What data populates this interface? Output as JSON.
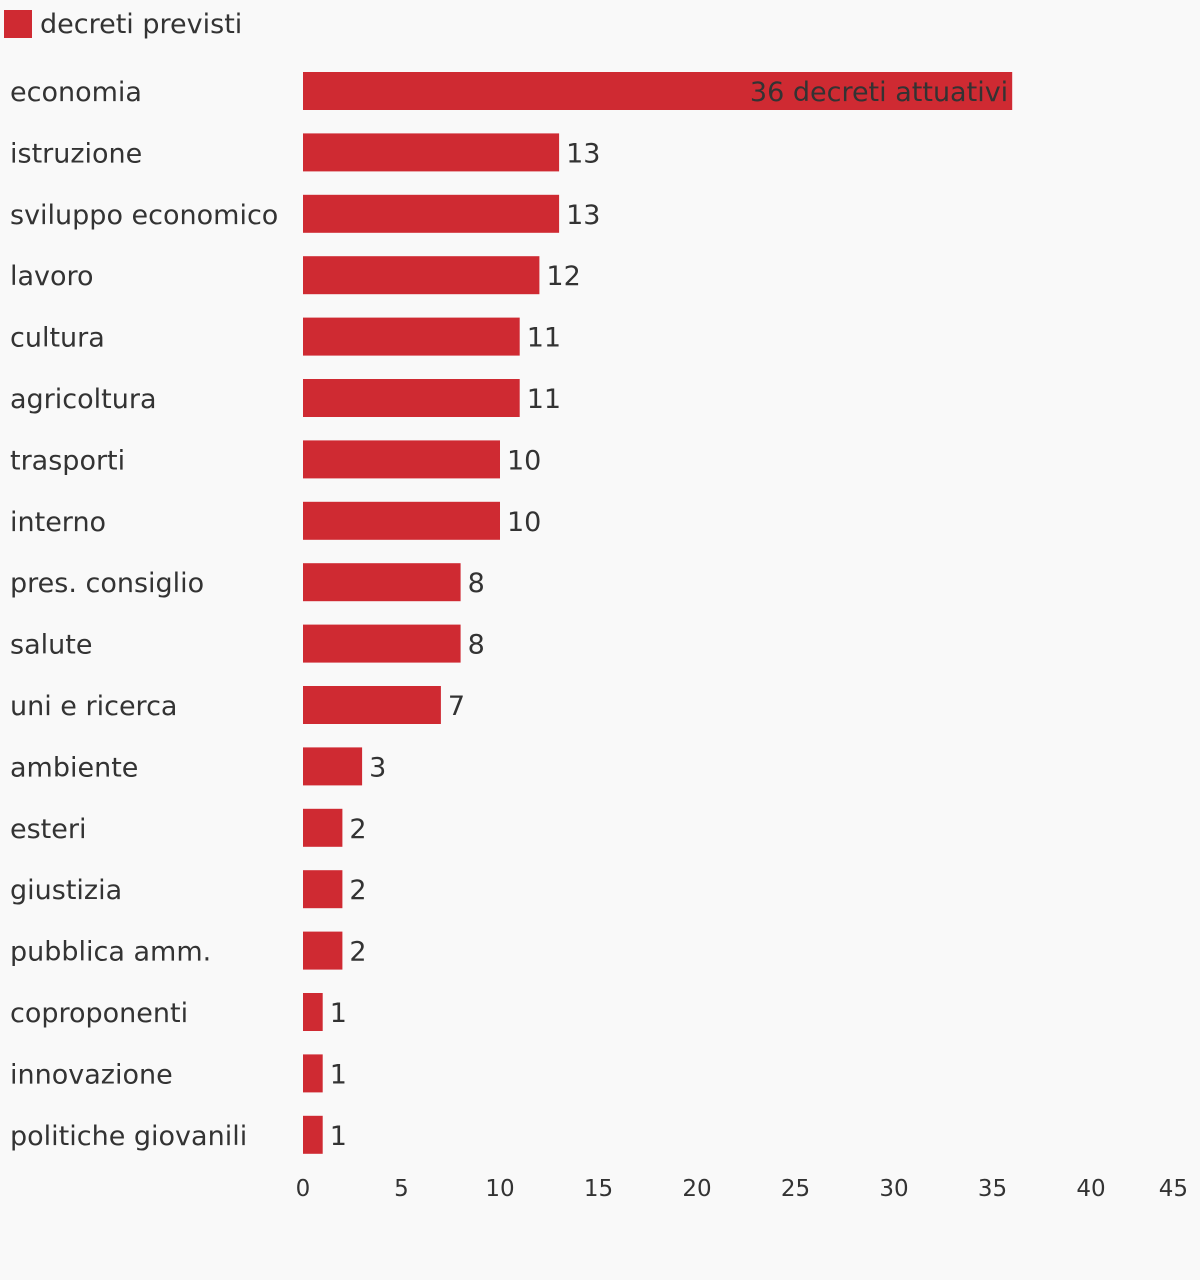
{
  "legend": {
    "label": "decreti previsti",
    "color": "#cf2a32"
  },
  "chart_data": {
    "type": "bar",
    "orientation": "horizontal",
    "title": "",
    "xlabel": "",
    "ylabel": "",
    "categories": [
      "economia",
      "istruzione",
      "sviluppo economico",
      "lavoro",
      "cultura",
      "agricoltura",
      "trasporti",
      "interno",
      "pres. consiglio",
      "salute",
      "uni e ricerca",
      "ambiente",
      "esteri",
      "giustizia",
      "pubblica amm.",
      "coproponenti",
      "innovazione",
      "politiche giovanili"
    ],
    "series": [
      {
        "name": "decreti previsti",
        "color": "#cf2a32",
        "values": [
          36,
          13,
          13,
          12,
          11,
          11,
          10,
          10,
          8,
          8,
          7,
          3,
          2,
          2,
          2,
          1,
          1,
          1
        ]
      }
    ],
    "data_labels": [
      "36 decreti attuativi",
      "13",
      "13",
      "12",
      "11",
      "11",
      "10",
      "10",
      "8",
      "8",
      "7",
      "3",
      "2",
      "2",
      "2",
      "1",
      "1",
      "1"
    ],
    "xlim": [
      0,
      45
    ],
    "xticks": [
      0,
      5,
      10,
      15,
      20,
      25,
      30,
      35,
      40,
      45
    ],
    "grid": false,
    "legend_position": "top-left"
  }
}
